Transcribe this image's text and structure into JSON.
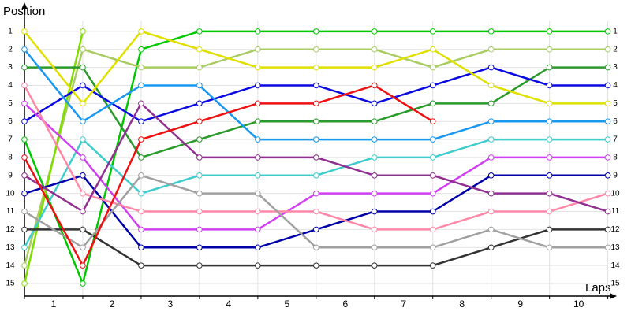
{
  "chart_data": {
    "type": "line",
    "y_label": "Position",
    "x_label": "Laps",
    "x": [
      0,
      1,
      2,
      3,
      4,
      5,
      6,
      7,
      8,
      9,
      10
    ],
    "xlim": [
      0,
      10.1
    ],
    "xticks": [
      {
        "value": 0.5,
        "label": "1"
      },
      {
        "value": 1.5,
        "label": "2"
      },
      {
        "value": 2.5,
        "label": "3"
      },
      {
        "value": 3.5,
        "label": "4"
      },
      {
        "value": 4.5,
        "label": "5"
      },
      {
        "value": 5.5,
        "label": "6"
      },
      {
        "value": 6.5,
        "label": "7"
      },
      {
        "value": 7.5,
        "label": "8"
      },
      {
        "value": 8.5,
        "label": "9"
      },
      {
        "value": 9.5,
        "label": "10"
      }
    ],
    "ylim": [
      15.7,
      0
    ],
    "yticks": [
      1,
      2,
      3,
      4,
      5,
      6,
      7,
      8,
      9,
      10,
      11,
      12,
      13,
      14,
      15
    ],
    "grid": true,
    "series": [
      {
        "color": "#00c800",
        "values": [
          7,
          15,
          2,
          1,
          1,
          1,
          1,
          1,
          1,
          1,
          1
        ]
      },
      {
        "color": "#a8cc60",
        "values": [
          14,
          2,
          3,
          3,
          2,
          2,
          2,
          3,
          2,
          2,
          2
        ]
      },
      {
        "color": "#80dd00",
        "values": [
          15,
          1,
          null,
          null,
          null,
          null,
          null,
          null,
          null,
          null,
          null
        ]
      },
      {
        "color": "#2a9a2a",
        "values": [
          3,
          3,
          8,
          7,
          6,
          6,
          6,
          5,
          5,
          3,
          3
        ]
      },
      {
        "color": "#0a0ae0",
        "values": [
          6,
          4,
          6,
          5,
          4,
          4,
          5,
          4,
          3,
          4,
          4
        ]
      },
      {
        "color": "#e0e000",
        "values": [
          1,
          5,
          1,
          2,
          3,
          3,
          3,
          2,
          4,
          5,
          5
        ]
      },
      {
        "color": "#1a98f0",
        "values": [
          2,
          6,
          4,
          4,
          7,
          7,
          7,
          7,
          6,
          6,
          6
        ]
      },
      {
        "color": "#40cccc",
        "values": [
          13,
          7,
          10,
          9,
          9,
          9,
          8,
          8,
          7,
          7,
          7
        ]
      },
      {
        "color": "#d040f0",
        "values": [
          5,
          8,
          12,
          12,
          12,
          10,
          10,
          10,
          8,
          8,
          8
        ]
      },
      {
        "color": "#0000a8",
        "values": [
          10,
          9,
          13,
          13,
          13,
          12,
          11,
          11,
          9,
          9,
          9
        ]
      },
      {
        "color": "#ff88a8",
        "values": [
          4,
          10,
          11,
          11,
          11,
          11,
          12,
          12,
          11,
          11,
          10
        ]
      },
      {
        "color": "#903090",
        "values": [
          9,
          11,
          5,
          8,
          8,
          8,
          9,
          9,
          10,
          10,
          11
        ]
      },
      {
        "color": "#333333",
        "values": [
          12,
          12,
          14,
          14,
          14,
          14,
          14,
          14,
          13,
          12,
          12
        ]
      },
      {
        "color": "#a0a0a0",
        "values": [
          11,
          13,
          9,
          10,
          10,
          13,
          13,
          13,
          12,
          13,
          13
        ]
      },
      {
        "color": "#ee1111",
        "values": [
          8,
          14,
          7,
          6,
          5,
          5,
          4,
          6,
          null,
          null,
          null
        ]
      }
    ]
  }
}
